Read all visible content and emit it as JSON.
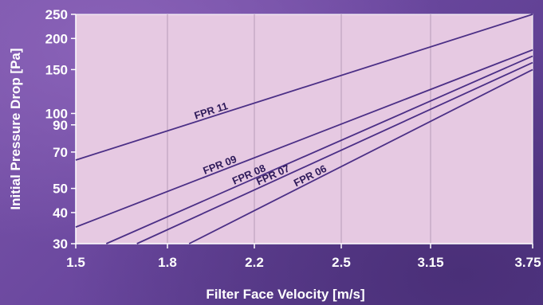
{
  "chart_data": {
    "type": "line",
    "x_scale": "ordinal-ticks",
    "y_scale": "log",
    "xlabel": "Filter Face Velocity [m/s]",
    "ylabel": "Initial Pressure Drop [Pa]",
    "x_ticks": [
      "1.5",
      "1.8",
      "2.2",
      "2.5",
      "3.15",
      "3.75"
    ],
    "y_ticks": [
      30,
      40,
      50,
      70,
      90,
      100,
      150,
      200,
      250
    ],
    "ylim": [
      30,
      250
    ],
    "grid": "vertical",
    "series": [
      {
        "name": "FPR 11",
        "points": [
          {
            "x": 1.5,
            "y": 65
          },
          {
            "x": 3.75,
            "y": 250
          }
        ]
      },
      {
        "name": "FPR 09",
        "points": [
          {
            "x": 1.5,
            "y": 35
          },
          {
            "x": 3.75,
            "y": 180
          }
        ]
      },
      {
        "name": "FPR 08",
        "points": [
          {
            "x": 1.6,
            "y": 30
          },
          {
            "x": 3.75,
            "y": 170
          }
        ]
      },
      {
        "name": "FPR 07",
        "points": [
          {
            "x": 1.7,
            "y": 30
          },
          {
            "x": 3.75,
            "y": 160
          }
        ]
      },
      {
        "name": "FPR 06",
        "points": [
          {
            "x": 1.9,
            "y": 30
          },
          {
            "x": 3.75,
            "y": 150
          }
        ]
      }
    ],
    "colors": {
      "plot_bg": "#e6c9e2",
      "line": "#4b2f86",
      "grid": "#b79ab8",
      "text": "#ffffff",
      "label": "#2e1a5a"
    }
  }
}
